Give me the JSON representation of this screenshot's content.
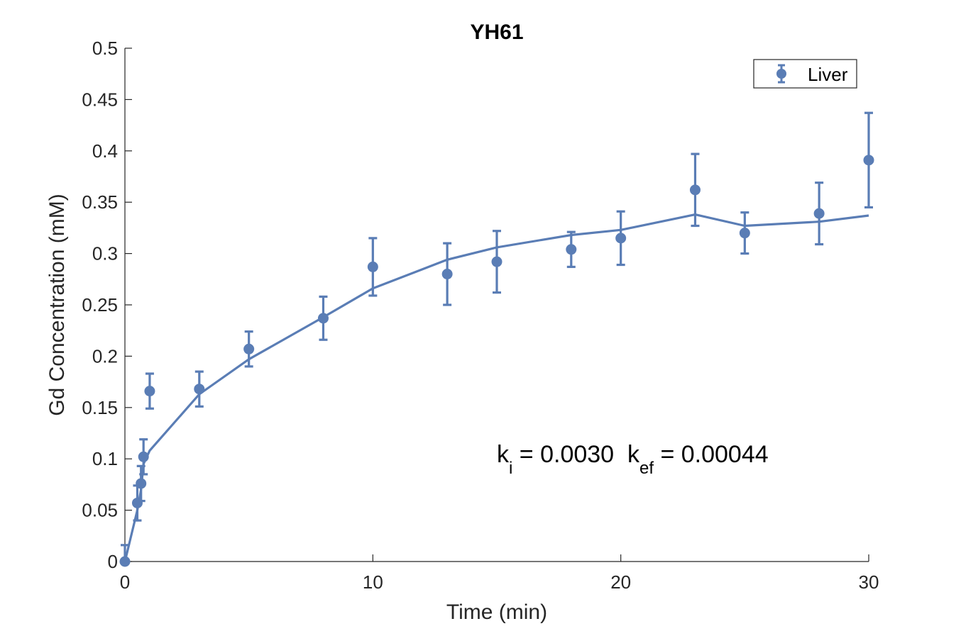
{
  "chart_data": {
    "type": "scatter",
    "title": "YH61",
    "xlabel": "Time (min)",
    "ylabel": "Gd Concentration (mM)",
    "xlim": [
      0,
      30
    ],
    "ylim": [
      0,
      0.5
    ],
    "xticks": [
      0,
      10,
      20,
      30
    ],
    "xtick_labels": [
      "0",
      "10",
      "20",
      "30"
    ],
    "yticks": [
      0,
      0.05,
      0.1,
      0.15,
      0.2,
      0.25,
      0.3,
      0.35,
      0.4,
      0.45,
      0.5
    ],
    "ytick_labels": [
      "0",
      "0.05",
      "0.1",
      "0.15",
      "0.2",
      "0.25",
      "0.3",
      "0.35",
      "0.4",
      "0.45",
      "0.5"
    ],
    "grid": false,
    "legend_position": "top-right",
    "color": "#5a7db5",
    "series": [
      {
        "name": "Liver",
        "style": "markers-with-errorbars",
        "x": [
          0,
          0.5,
          0.65,
          0.75,
          1,
          3,
          5,
          8,
          10,
          13,
          15,
          18,
          20,
          23,
          25,
          28,
          30
        ],
        "y": [
          0,
          0.057,
          0.076,
          0.102,
          0.166,
          0.168,
          0.207,
          0.237,
          0.287,
          0.28,
          0.292,
          0.304,
          0.315,
          0.362,
          0.32,
          0.339,
          0.391
        ],
        "err": [
          0.016,
          0.017,
          0.017,
          0.017,
          0.017,
          0.017,
          0.017,
          0.021,
          0.028,
          0.03,
          0.03,
          0.017,
          0.026,
          0.035,
          0.02,
          0.03,
          0.046
        ]
      },
      {
        "name": "",
        "style": "line",
        "x": [
          0,
          0.5,
          0.65,
          0.75,
          1,
          3,
          5,
          8,
          10,
          13,
          15,
          18,
          20,
          23,
          25,
          28,
          30
        ],
        "y": [
          0,
          0.05,
          0.07,
          0.095,
          0.108,
          0.163,
          0.197,
          0.238,
          0.266,
          0.294,
          0.306,
          0.318,
          0.323,
          0.338,
          0.327,
          0.331,
          0.337
        ]
      }
    ],
    "annotation": {
      "k_symbol_1": "k",
      "k_sub_1": "i",
      "value_1": " = 0.0030  ",
      "k_symbol_2": "k",
      "k_sub_2": "ef",
      "value_2": " = 0.00044"
    }
  }
}
